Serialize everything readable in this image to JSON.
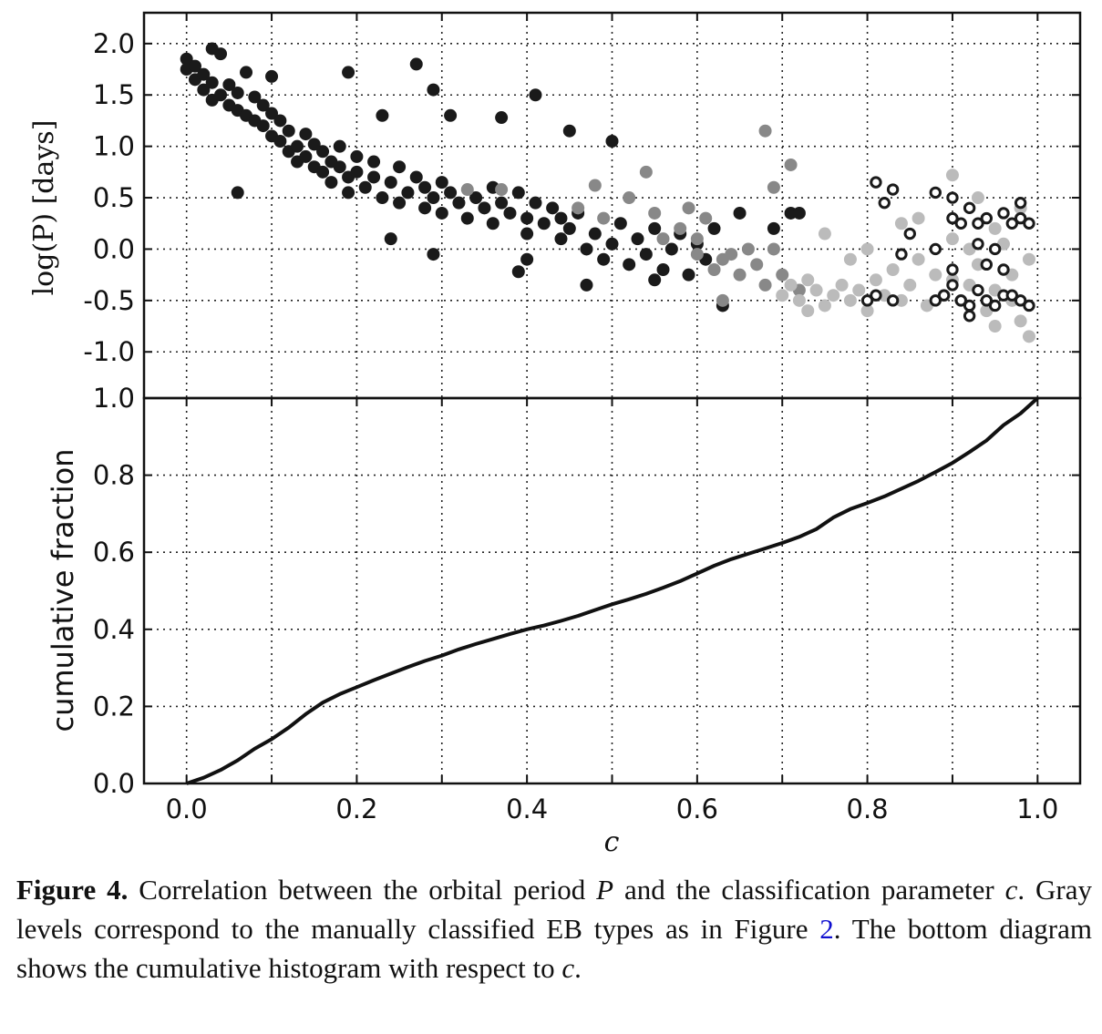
{
  "chart_data": [
    {
      "type": "scatter",
      "panel": "top",
      "xlabel": "c",
      "ylabel": "log(P) [days]",
      "xlim": [
        -0.05,
        1.05
      ],
      "ylim": [
        -1.45,
        2.3
      ],
      "xticks": [
        "0.0",
        "0.2",
        "0.4",
        "0.6",
        "0.8",
        "1.0"
      ],
      "yticks": [
        "2.0",
        "1.5",
        "1.0",
        "0.5",
        "0.0",
        "-0.5",
        "-1.0"
      ],
      "grid": true,
      "series": [
        {
          "style": "filled",
          "color": "#1a1a1a",
          "points": [
            [
              0.0,
              1.85
            ],
            [
              0.0,
              1.75
            ],
            [
              0.01,
              1.65
            ],
            [
              0.01,
              1.78
            ],
            [
              0.02,
              1.55
            ],
            [
              0.02,
              1.7
            ],
            [
              0.03,
              1.62
            ],
            [
              0.03,
              1.45
            ],
            [
              0.04,
              1.9
            ],
            [
              0.04,
              1.5
            ],
            [
              0.05,
              1.4
            ],
            [
              0.05,
              1.6
            ],
            [
              0.06,
              1.35
            ],
            [
              0.06,
              1.52
            ],
            [
              0.07,
              1.3
            ],
            [
              0.07,
              1.72
            ],
            [
              0.08,
              1.25
            ],
            [
              0.08,
              1.48
            ],
            [
              0.09,
              1.2
            ],
            [
              0.09,
              1.4
            ],
            [
              0.1,
              1.1
            ],
            [
              0.1,
              1.32
            ],
            [
              0.11,
              1.05
            ],
            [
              0.11,
              1.25
            ],
            [
              0.12,
              0.95
            ],
            [
              0.12,
              1.15
            ],
            [
              0.13,
              1.0
            ],
            [
              0.13,
              0.85
            ],
            [
              0.14,
              0.9
            ],
            [
              0.14,
              1.12
            ],
            [
              0.15,
              0.8
            ],
            [
              0.15,
              1.02
            ],
            [
              0.16,
              0.75
            ],
            [
              0.16,
              0.95
            ],
            [
              0.17,
              0.85
            ],
            [
              0.17,
              0.65
            ],
            [
              0.18,
              0.8
            ],
            [
              0.18,
              1.0
            ],
            [
              0.19,
              0.7
            ],
            [
              0.19,
              0.55
            ],
            [
              0.2,
              0.75
            ],
            [
              0.2,
              0.9
            ],
            [
              0.21,
              0.6
            ],
            [
              0.22,
              0.7
            ],
            [
              0.22,
              0.85
            ],
            [
              0.23,
              0.5
            ],
            [
              0.24,
              0.65
            ],
            [
              0.25,
              0.45
            ],
            [
              0.25,
              0.8
            ],
            [
              0.26,
              0.55
            ],
            [
              0.27,
              0.7
            ],
            [
              0.28,
              0.4
            ],
            [
              0.28,
              0.6
            ],
            [
              0.29,
              0.5
            ],
            [
              0.3,
              0.65
            ],
            [
              0.3,
              0.35
            ],
            [
              0.31,
              0.55
            ],
            [
              0.32,
              0.45
            ],
            [
              0.33,
              0.3
            ],
            [
              0.34,
              0.5
            ],
            [
              0.35,
              0.4
            ],
            [
              0.36,
              0.6
            ],
            [
              0.36,
              0.25
            ],
            [
              0.37,
              0.45
            ],
            [
              0.38,
              0.35
            ],
            [
              0.39,
              0.55
            ],
            [
              0.4,
              0.3
            ],
            [
              0.4,
              0.15
            ],
            [
              0.41,
              0.45
            ],
            [
              0.42,
              0.25
            ],
            [
              0.43,
              0.4
            ],
            [
              0.44,
              0.1
            ],
            [
              0.44,
              0.3
            ],
            [
              0.45,
              0.2
            ],
            [
              0.46,
              0.35
            ],
            [
              0.47,
              0.0
            ],
            [
              0.48,
              0.15
            ],
            [
              0.49,
              -0.1
            ],
            [
              0.5,
              0.05
            ],
            [
              0.51,
              0.25
            ],
            [
              0.52,
              -0.15
            ],
            [
              0.53,
              0.1
            ],
            [
              0.54,
              -0.05
            ],
            [
              0.55,
              0.2
            ],
            [
              0.56,
              -0.2
            ],
            [
              0.57,
              0.0
            ],
            [
              0.58,
              0.15
            ],
            [
              0.59,
              -0.25
            ],
            [
              0.6,
              0.05
            ],
            [
              0.61,
              -0.1
            ],
            [
              0.62,
              0.2
            ],
            [
              0.63,
              -0.55
            ],
            [
              0.65,
              0.35
            ],
            [
              0.69,
              0.2
            ],
            [
              0.71,
              0.35
            ],
            [
              0.72,
              0.35
            ],
            [
              0.23,
              1.3
            ],
            [
              0.27,
              1.8
            ],
            [
              0.29,
              1.55
            ],
            [
              0.41,
              1.5
            ],
            [
              0.31,
              1.3
            ],
            [
              0.37,
              1.28
            ],
            [
              0.45,
              1.15
            ],
            [
              0.5,
              1.05
            ],
            [
              0.03,
              1.95
            ],
            [
              0.1,
              1.68
            ],
            [
              0.19,
              1.72
            ],
            [
              0.06,
              0.55
            ],
            [
              0.39,
              -0.22
            ],
            [
              0.4,
              -0.1
            ],
            [
              0.29,
              -0.05
            ],
            [
              0.24,
              0.1
            ],
            [
              0.47,
              -0.35
            ],
            [
              0.55,
              -0.3
            ]
          ]
        },
        {
          "style": "filled",
          "color": "#888888",
          "points": [
            [
              0.33,
              0.58
            ],
            [
              0.37,
              0.58
            ],
            [
              0.46,
              0.4
            ],
            [
              0.48,
              0.62
            ],
            [
              0.49,
              0.3
            ],
            [
              0.52,
              0.5
            ],
            [
              0.54,
              0.75
            ],
            [
              0.55,
              0.35
            ],
            [
              0.56,
              0.1
            ],
            [
              0.58,
              0.2
            ],
            [
              0.59,
              0.4
            ],
            [
              0.6,
              -0.05
            ],
            [
              0.61,
              0.3
            ],
            [
              0.62,
              -0.2
            ],
            [
              0.63,
              -0.1
            ],
            [
              0.64,
              -0.05
            ],
            [
              0.65,
              -0.25
            ],
            [
              0.66,
              0.0
            ],
            [
              0.67,
              -0.15
            ],
            [
              0.68,
              1.15
            ],
            [
              0.68,
              -0.35
            ],
            [
              0.69,
              0.6
            ],
            [
              0.7,
              -0.25
            ],
            [
              0.71,
              0.82
            ],
            [
              0.72,
              -0.4
            ],
            [
              0.63,
              -0.5
            ],
            [
              0.69,
              0.0
            ],
            [
              0.6,
              0.1
            ]
          ]
        },
        {
          "style": "filled",
          "color": "#bbbbbb",
          "points": [
            [
              0.7,
              -0.45
            ],
            [
              0.71,
              -0.35
            ],
            [
              0.72,
              -0.5
            ],
            [
              0.73,
              -0.3
            ],
            [
              0.74,
              -0.4
            ],
            [
              0.75,
              -0.55
            ],
            [
              0.76,
              -0.45
            ],
            [
              0.77,
              -0.35
            ],
            [
              0.78,
              -0.5
            ],
            [
              0.79,
              -0.4
            ],
            [
              0.8,
              -0.6
            ],
            [
              0.81,
              -0.3
            ],
            [
              0.82,
              -0.45
            ],
            [
              0.83,
              -0.2
            ],
            [
              0.84,
              -0.5
            ],
            [
              0.85,
              -0.35
            ],
            [
              0.86,
              -0.1
            ],
            [
              0.87,
              -0.55
            ],
            [
              0.88,
              -0.25
            ],
            [
              0.89,
              -0.45
            ],
            [
              0.9,
              0.1
            ],
            [
              0.9,
              -0.3
            ],
            [
              0.91,
              -0.5
            ],
            [
              0.92,
              0.0
            ],
            [
              0.92,
              -0.35
            ],
            [
              0.93,
              0.5
            ],
            [
              0.93,
              -0.15
            ],
            [
              0.94,
              -0.6
            ],
            [
              0.95,
              0.2
            ],
            [
              0.95,
              -0.4
            ],
            [
              0.96,
              0.05
            ],
            [
              0.97,
              -0.25
            ],
            [
              0.98,
              0.4
            ],
            [
              0.98,
              -0.7
            ],
            [
              0.99,
              -0.1
            ],
            [
              0.99,
              -0.85
            ],
            [
              0.9,
              0.72
            ],
            [
              0.84,
              0.25
            ],
            [
              0.75,
              0.15
            ],
            [
              0.78,
              -0.1
            ],
            [
              0.73,
              -0.6
            ],
            [
              0.97,
              -0.5
            ],
            [
              0.86,
              0.3
            ],
            [
              0.8,
              0.0
            ],
            [
              0.95,
              -0.75
            ]
          ]
        },
        {
          "style": "open",
          "color": "#1a1a1a",
          "points": [
            [
              0.81,
              0.65
            ],
            [
              0.82,
              0.45
            ],
            [
              0.83,
              0.58
            ],
            [
              0.84,
              -0.05
            ],
            [
              0.85,
              0.15
            ],
            [
              0.8,
              -0.5
            ],
            [
              0.81,
              -0.45
            ],
            [
              0.83,
              -0.5
            ],
            [
              0.88,
              0.55
            ],
            [
              0.88,
              -0.5
            ],
            [
              0.89,
              -0.45
            ],
            [
              0.9,
              0.5
            ],
            [
              0.9,
              0.3
            ],
            [
              0.9,
              -0.35
            ],
            [
              0.91,
              0.25
            ],
            [
              0.91,
              -0.5
            ],
            [
              0.92,
              0.4
            ],
            [
              0.92,
              -0.55
            ],
            [
              0.93,
              0.25
            ],
            [
              0.93,
              0.05
            ],
            [
              0.93,
              -0.4
            ],
            [
              0.94,
              0.3
            ],
            [
              0.94,
              -0.15
            ],
            [
              0.94,
              -0.5
            ],
            [
              0.95,
              0.0
            ],
            [
              0.95,
              -0.55
            ],
            [
              0.96,
              0.35
            ],
            [
              0.96,
              -0.45
            ],
            [
              0.97,
              0.25
            ],
            [
              0.97,
              -0.45
            ],
            [
              0.98,
              0.45
            ],
            [
              0.98,
              0.3
            ],
            [
              0.98,
              -0.5
            ],
            [
              0.99,
              0.25
            ],
            [
              0.99,
              -0.55
            ],
            [
              0.92,
              -0.65
            ],
            [
              0.96,
              -0.2
            ],
            [
              0.9,
              -0.2
            ],
            [
              0.88,
              0.0
            ]
          ]
        }
      ]
    },
    {
      "type": "line",
      "panel": "bottom",
      "xlabel": "c",
      "ylabel": "cumulative fraction",
      "xlim": [
        -0.05,
        1.05
      ],
      "ylim": [
        0.0,
        1.0
      ],
      "xticks": [
        "0.0",
        "0.2",
        "0.4",
        "0.6",
        "0.8",
        "1.0"
      ],
      "yticks": [
        "1.0",
        "0.8",
        "0.6",
        "0.4",
        "0.2",
        "0.0"
      ],
      "grid": true,
      "x": [
        0.0,
        0.02,
        0.04,
        0.06,
        0.08,
        0.1,
        0.12,
        0.14,
        0.16,
        0.18,
        0.2,
        0.22,
        0.24,
        0.26,
        0.28,
        0.3,
        0.32,
        0.34,
        0.36,
        0.38,
        0.4,
        0.42,
        0.44,
        0.46,
        0.48,
        0.5,
        0.52,
        0.54,
        0.56,
        0.58,
        0.6,
        0.62,
        0.64,
        0.66,
        0.68,
        0.7,
        0.72,
        0.74,
        0.76,
        0.78,
        0.8,
        0.82,
        0.84,
        0.86,
        0.88,
        0.9,
        0.92,
        0.94,
        0.96,
        0.98,
        1.0
      ],
      "values": [
        0.0,
        0.015,
        0.035,
        0.06,
        0.09,
        0.115,
        0.145,
        0.18,
        0.21,
        0.232,
        0.25,
        0.268,
        0.285,
        0.302,
        0.318,
        0.332,
        0.348,
        0.362,
        0.375,
        0.388,
        0.4,
        0.41,
        0.422,
        0.435,
        0.45,
        0.465,
        0.478,
        0.492,
        0.508,
        0.525,
        0.545,
        0.565,
        0.582,
        0.596,
        0.61,
        0.624,
        0.64,
        0.66,
        0.69,
        0.712,
        0.728,
        0.745,
        0.765,
        0.785,
        0.808,
        0.832,
        0.86,
        0.89,
        0.93,
        0.96,
        1.0
      ],
      "color": "#111111"
    }
  ],
  "caption": {
    "label": "Figure 4.",
    "text_1": " Correlation between the orbital period ",
    "var_P": "P",
    "text_2": " and the classification parameter ",
    "var_c1": "c",
    "text_3": ". Gray levels correspond to the manually classified EB types as in Figure ",
    "ref": "2",
    "text_4": ". The bottom diagram shows the cumulative histogram with respect to ",
    "var_c2": "c",
    "text_5": "."
  }
}
